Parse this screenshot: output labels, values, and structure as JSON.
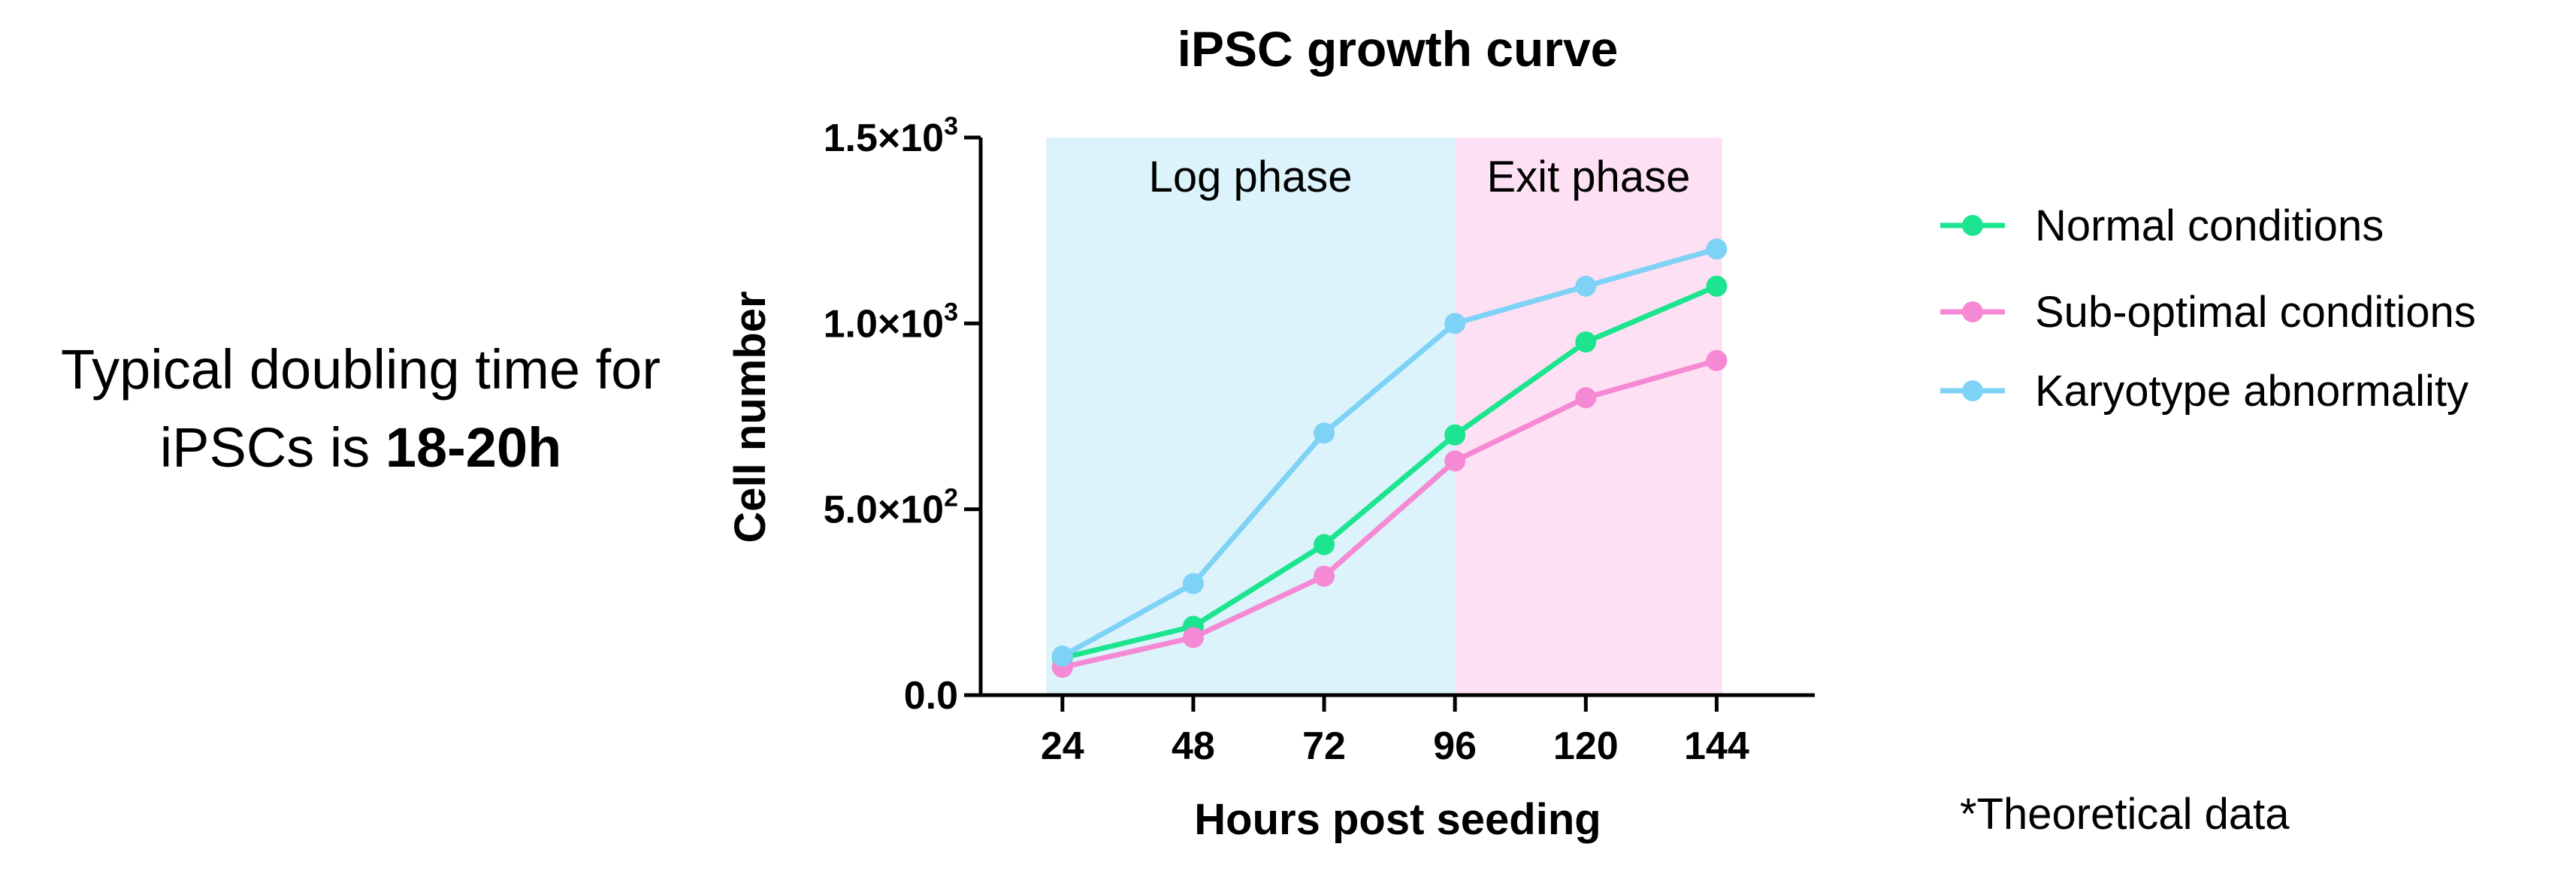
{
  "note": {
    "prefix": "Typical doubling time for",
    "line2_prefix": "iPSCs is ",
    "bold": "18-20h"
  },
  "footnote": "*Theoretical data",
  "chart_data": {
    "type": "line",
    "title": "iPSC growth curve",
    "xlabel": "Hours post seeding",
    "ylabel": "Cell number",
    "x": [
      24,
      48,
      72,
      96,
      120,
      144
    ],
    "xticks": [
      "24",
      "48",
      "72",
      "96",
      "120",
      "144"
    ],
    "xlim": [
      9,
      162
    ],
    "ylim": [
      0,
      1500
    ],
    "yticks": [
      {
        "value": 0,
        "mant": "0.0",
        "exp": ""
      },
      {
        "value": 500,
        "mant": "5.0×10",
        "exp": "2"
      },
      {
        "value": 1000,
        "mant": "1.0×10",
        "exp": "3"
      },
      {
        "value": 1500,
        "mant": "1.5×10",
        "exp": "3"
      }
    ],
    "regions": [
      {
        "label": "Log phase",
        "x_start": 21,
        "x_end": 96,
        "color": "#dcf3fb"
      },
      {
        "label": "Exit phase",
        "x_start": 96,
        "x_end": 145,
        "color": "#fde0f3"
      }
    ],
    "series": [
      {
        "name": "Normal conditions",
        "color": "#1de48f",
        "values": [
          100,
          185,
          405,
          700,
          950,
          1100
        ]
      },
      {
        "name": "Sub-optimal conditions",
        "color": "#f589d4",
        "values": [
          75,
          155,
          320,
          630,
          800,
          900
        ]
      },
      {
        "name": "Karyotype abnormality",
        "color": "#7ed2f5",
        "values": [
          105,
          300,
          705,
          1000,
          1100,
          1200
        ]
      }
    ],
    "legend_position": "right",
    "grid": false
  }
}
